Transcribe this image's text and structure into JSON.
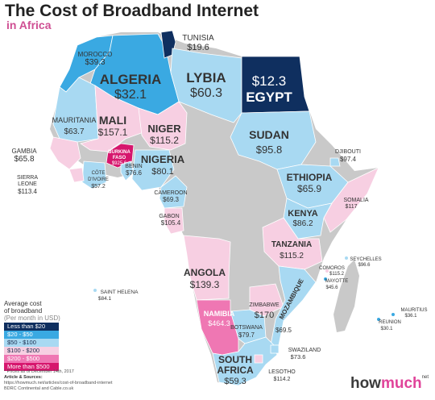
{
  "header": {
    "title": "The Cost of Broadband Internet",
    "subtitle": "in Africa"
  },
  "colors": {
    "lt20": "#0f2f5f",
    "r20_50": "#3aa9e2",
    "r50_100": "#a8d9f2",
    "r100_200": "#f7cfe2",
    "r200_500": "#ef77b3",
    "gt500": "#d6166d",
    "nodata": "#c9c9c9"
  },
  "countries": {
    "tunisia": {
      "name": "TUNISIA",
      "price": "$19.6"
    },
    "morocco": {
      "name": "MOROCCO",
      "price": "$39.3"
    },
    "algeria": {
      "name": "ALGERIA",
      "price": "$32.1"
    },
    "libya": {
      "name": "LYBIA",
      "price": "$60.3"
    },
    "egypt": {
      "name": "EGYPT",
      "price": "$12.3"
    },
    "mauritania": {
      "name": "MAURITANIA",
      "price": "$63.7"
    },
    "mali": {
      "name": "MALI",
      "price": "$157.1"
    },
    "niger": {
      "name": "NIGER",
      "price": "$115.2"
    },
    "sudan": {
      "name": "SUDAN",
      "price": "$95.8"
    },
    "gambia": {
      "name": "GAMBIA",
      "price": "$65.8"
    },
    "burkina": {
      "name_line1": "BURKINA",
      "name_line2": "FASO",
      "price": "$925.6"
    },
    "djibouti": {
      "name": "DJIBOUTI",
      "price": "$97.4"
    },
    "benin": {
      "name": "BENIN",
      "price": "$76.6"
    },
    "nigeria": {
      "name": "NIGERIA",
      "price": "$80.1"
    },
    "ethiopia": {
      "name": "ETHIOPIA",
      "price": "$65.9"
    },
    "sierra": {
      "name_line1": "SIERRA",
      "name_line2": "LEONE",
      "price": "$113.4"
    },
    "ivoire": {
      "name_line1": "CÔTE",
      "name_line2": "D'IVOIRE",
      "price": "$57.2"
    },
    "cameroon": {
      "name": "CAMEROON",
      "price": "$69.3"
    },
    "somalia": {
      "name": "SOMALIA",
      "price": "$117"
    },
    "gabon": {
      "name": "GABON",
      "price": "$105.4"
    },
    "kenya": {
      "name": "KENYA",
      "price": "$86.2"
    },
    "tanzania": {
      "name": "TANZANIA",
      "price": "$115.2"
    },
    "seychelles": {
      "name": "SEYCHELLES",
      "price": "$96.6"
    },
    "comoros": {
      "name": "COMOROS",
      "price": "$115.2"
    },
    "mayotte": {
      "name": "MAYOTTE",
      "price": "$45.6"
    },
    "angola": {
      "name": "ANGOLA",
      "price": "$139.3"
    },
    "sthelena": {
      "name": "SAINT HELENA",
      "price": "$84.1"
    },
    "zimbabwe": {
      "name": "ZIMBABWE",
      "price": "$170"
    },
    "mozambique": {
      "name": "MOZAMBIQUE",
      "price": "$69.5"
    },
    "mauritius": {
      "name": "MAURITIUS",
      "price": "$36.1"
    },
    "reunion": {
      "name": "REUNION",
      "price": "$30.1"
    },
    "namibia": {
      "name": "NAMIBIA",
      "price": "$464.3"
    },
    "botswana": {
      "name": "BOTSWANA",
      "price": "$79.7"
    },
    "swaziland": {
      "name": "SWAZILAND",
      "price": "$73.6"
    },
    "southafrica": {
      "name_line1": "SOUTH",
      "name_line2": "AFRICA",
      "price": "$59.3"
    },
    "lesotho": {
      "name": "LESOTHO",
      "price": "$114.2"
    }
  },
  "legend": {
    "heading_line1": "Average cost",
    "heading_line2": "of broadband",
    "heading_line3": "(Per month in USD)",
    "items": [
      "Less than $20",
      "$20 - $50",
      "$50 - $100",
      "$100 - $200",
      "$200 - $500",
      "More than $500"
    ]
  },
  "notes": {
    "prices_note": "* Prices as of December 14th, 2017",
    "sources_title": "Article & Sources:",
    "source_url": "https://howmuch.net/articles/cost-of-broadband-internet",
    "source_2": "BDRC Continental and Cable.co.uk"
  },
  "brand": {
    "part1": "how",
    "part2": "much",
    "suffix": "net"
  }
}
